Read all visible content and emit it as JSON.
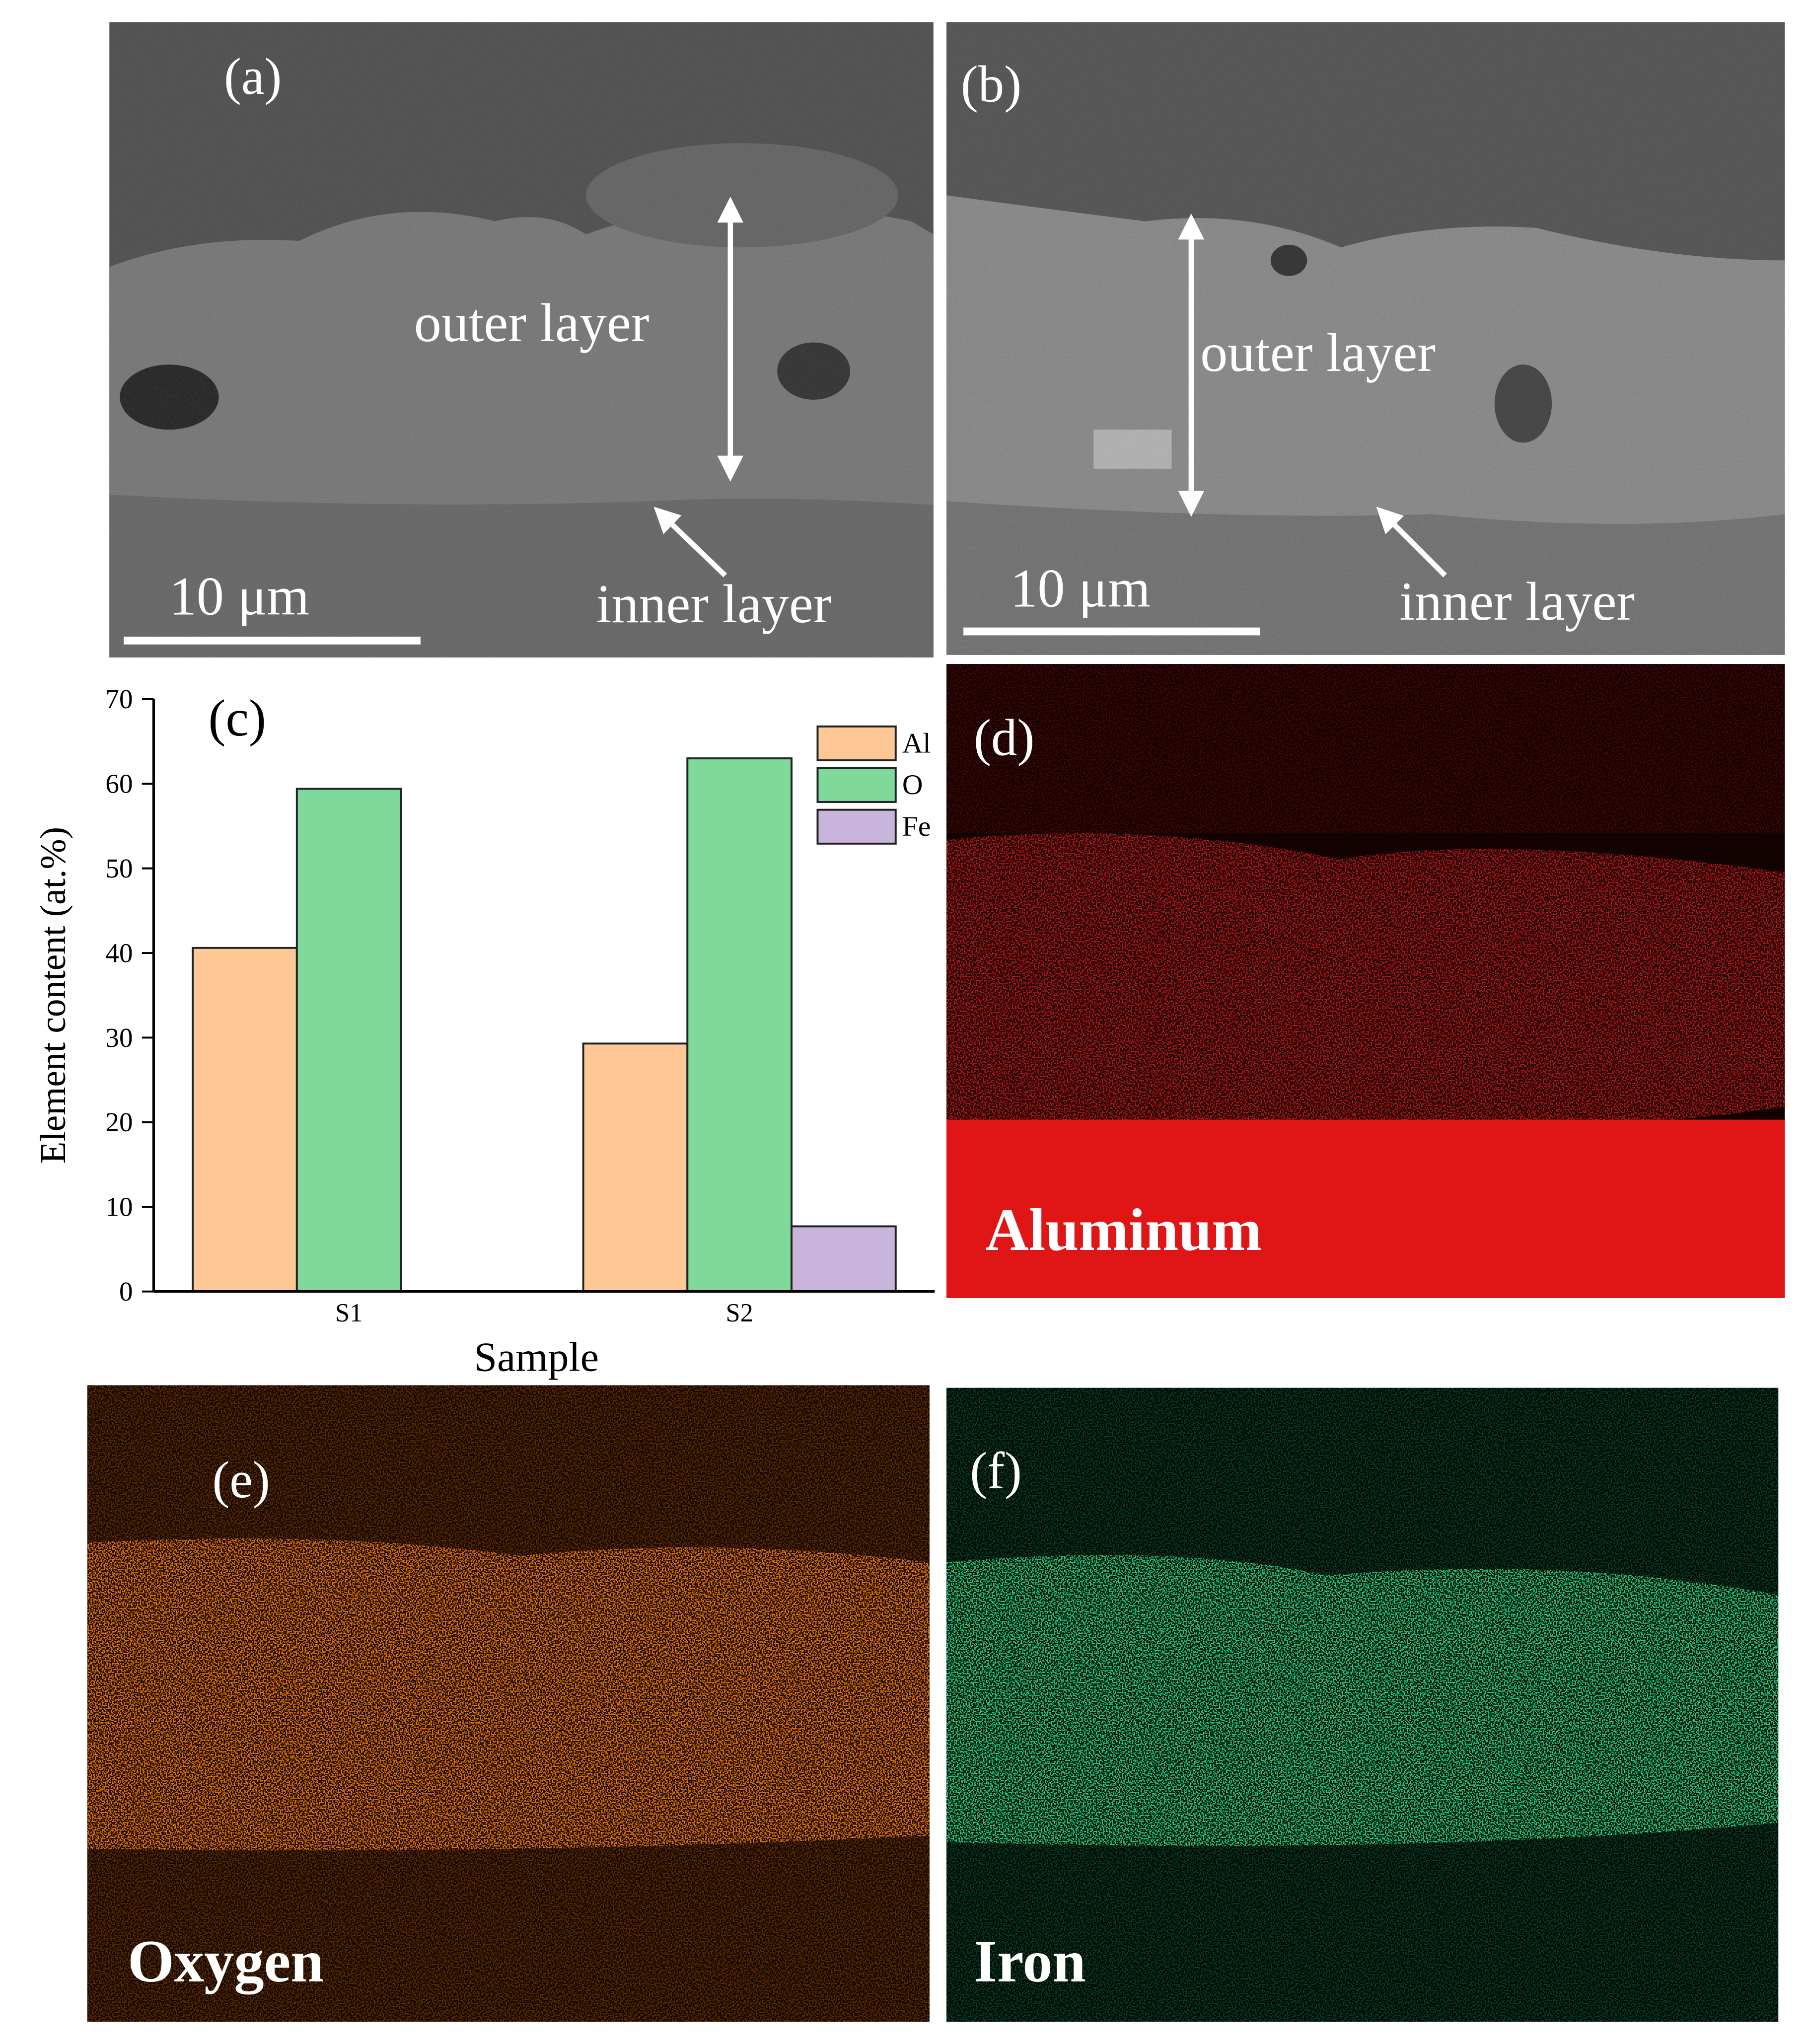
{
  "panels": [
    {
      "label": "(a)",
      "annotations": [
        "outer layer",
        "inner layer"
      ],
      "scale_bar": "10 μm"
    },
    {
      "label": "(b)",
      "annotations": [
        "outer layer",
        "inner layer"
      ],
      "scale_bar": "10 μm"
    },
    {
      "label": "(d)",
      "element": "Aluminum"
    },
    {
      "label": "(e)",
      "element": "Oxygen"
    },
    {
      "label": "(f)",
      "element": "Iron"
    }
  ],
  "chart_data": {
    "type": "bar",
    "panel_label": "(c)",
    "y_label": "Element content (at.%)",
    "x_label": "Sample",
    "categories": [
      "S1",
      "S2"
    ],
    "series": [
      {
        "name": "Al",
        "color": "#fdc896",
        "values": [
          40.6,
          29.3
        ]
      },
      {
        "name": "O",
        "color": "#7fd99a",
        "values": [
          59.4,
          63.0
        ]
      },
      {
        "name": "Fe",
        "color": "#c9b4dc",
        "values": [
          null,
          7.7
        ]
      }
    ],
    "ylim": [
      0,
      70
    ],
    "yticks": [
      0,
      10,
      20,
      30,
      40,
      50,
      60,
      70
    ],
    "legend": "top-right"
  }
}
